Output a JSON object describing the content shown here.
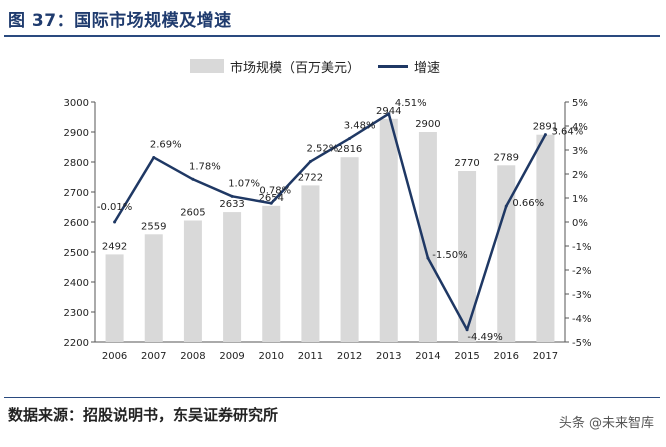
{
  "header": {
    "title": "图 37：国际市场规模及增速"
  },
  "legend": {
    "bar_label": "市场规模（百万美元）",
    "line_label": "增速"
  },
  "footer": {
    "source": "数据来源：招股说明书，东吴证券研究所",
    "watermark": "头条 @未来智库"
  },
  "colors": {
    "bar": "#d9d9d9",
    "line": "#1f3864",
    "title": "#1f3b6e"
  },
  "chart_data": {
    "type": "bar",
    "categories": [
      "2006",
      "2007",
      "2008",
      "2009",
      "2010",
      "2011",
      "2012",
      "2013",
      "2014",
      "2015",
      "2016",
      "2017"
    ],
    "series": [
      {
        "name": "市场规模（百万美元）",
        "type": "bar",
        "axis": "left",
        "values": [
          2492,
          2559,
          2605,
          2633,
          2654,
          2722,
          2816,
          2944,
          2900,
          2770,
          2789,
          2891
        ],
        "labels": [
          "2492",
          "2559",
          "2605",
          "2633",
          "2654",
          "2722",
          "2816",
          "2944",
          "2900",
          "2770",
          "2789",
          "2891"
        ]
      },
      {
        "name": "增速",
        "type": "line",
        "axis": "right",
        "values": [
          0.0,
          2.69,
          1.78,
          1.07,
          0.78,
          2.52,
          3.48,
          4.51,
          -1.5,
          -4.49,
          0.66,
          3.64
        ],
        "labels": [
          "-0.01%",
          "2.69%",
          "1.78%",
          "1.07%",
          "0.78%",
          "2.52%",
          "3.48%",
          "4.51%",
          "-1.50%",
          "-4.49%",
          "0.66%",
          "3.64%"
        ]
      }
    ],
    "y_left": {
      "lim": [
        2200,
        3000
      ],
      "ticks": [
        "2200",
        "2300",
        "2400",
        "2500",
        "2600",
        "2700",
        "2800",
        "2900",
        "3000"
      ]
    },
    "y_right": {
      "lim": [
        -5,
        5
      ],
      "ticks": [
        "-5%",
        "-4%",
        "-3%",
        "-2%",
        "-1%",
        "0%",
        "1%",
        "2%",
        "3%",
        "4%",
        "5%"
      ]
    },
    "legend_position": "top-center",
    "grid": false
  }
}
